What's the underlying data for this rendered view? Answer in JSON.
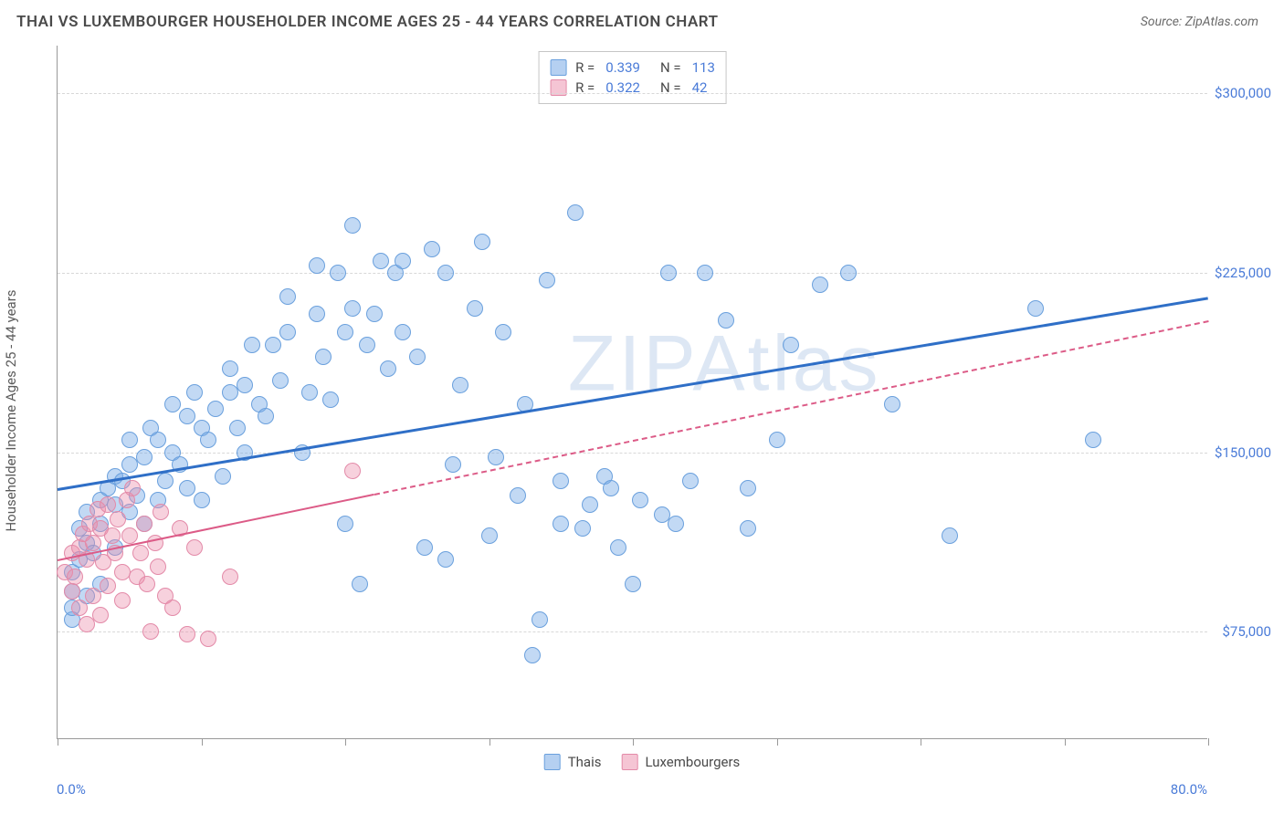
{
  "header": {
    "title": "THAI VS LUXEMBOURGER HOUSEHOLDER INCOME AGES 25 - 44 YEARS CORRELATION CHART",
    "source": "Source: ZipAtlas.com"
  },
  "watermark": "ZIPAtlas",
  "chart": {
    "type": "scatter",
    "ylabel": "Householder Income Ages 25 - 44 years",
    "xlim": [
      0,
      80
    ],
    "ylim": [
      30000,
      320000
    ],
    "xtick_positions": [
      0,
      10,
      20,
      30,
      40,
      50,
      60,
      70,
      80
    ],
    "xaxis_labels": {
      "left": "0.0%",
      "right": "80.0%"
    },
    "ytick_labels": [
      {
        "value": 75000,
        "label": "$75,000"
      },
      {
        "value": 150000,
        "label": "$150,000"
      },
      {
        "value": 225000,
        "label": "$225,000"
      },
      {
        "value": 300000,
        "label": "$300,000"
      }
    ],
    "background_color": "#ffffff",
    "grid_color": "#d8d8d8",
    "axis_color": "#999999",
    "point_radius": 9,
    "series": [
      {
        "name": "Thais",
        "fill": "rgba(120,170,230,0.45)",
        "stroke": "#6aa0dd",
        "trend_color": "#2f6fc7",
        "trend_width": 3,
        "trend": {
          "x1": 0,
          "y1": 135000,
          "x2": 80,
          "y2": 215000
        },
        "trend_dash_from_x": null,
        "R": "0.339",
        "N": "113",
        "points": [
          [
            1,
            80000
          ],
          [
            1,
            85000
          ],
          [
            1,
            92000
          ],
          [
            1,
            100000
          ],
          [
            1.5,
            105000
          ],
          [
            1.5,
            118000
          ],
          [
            2,
            90000
          ],
          [
            2,
            112000
          ],
          [
            2,
            125000
          ],
          [
            2.5,
            108000
          ],
          [
            3,
            95000
          ],
          [
            3,
            120000
          ],
          [
            3,
            130000
          ],
          [
            3.5,
            135000
          ],
          [
            4,
            110000
          ],
          [
            4,
            128000
          ],
          [
            4,
            140000
          ],
          [
            4.5,
            138000
          ],
          [
            5,
            125000
          ],
          [
            5,
            145000
          ],
          [
            5,
            155000
          ],
          [
            5.5,
            132000
          ],
          [
            6,
            120000
          ],
          [
            6,
            148000
          ],
          [
            6.5,
            160000
          ],
          [
            7,
            130000
          ],
          [
            7,
            155000
          ],
          [
            7.5,
            138000
          ],
          [
            8,
            150000
          ],
          [
            8,
            170000
          ],
          [
            8.5,
            145000
          ],
          [
            9,
            135000
          ],
          [
            9,
            165000
          ],
          [
            9.5,
            175000
          ],
          [
            10,
            130000
          ],
          [
            10,
            160000
          ],
          [
            10.5,
            155000
          ],
          [
            11,
            168000
          ],
          [
            11.5,
            140000
          ],
          [
            12,
            175000
          ],
          [
            12,
            185000
          ],
          [
            12.5,
            160000
          ],
          [
            13,
            150000
          ],
          [
            13,
            178000
          ],
          [
            13.5,
            195000
          ],
          [
            14,
            170000
          ],
          [
            14.5,
            165000
          ],
          [
            15,
            195000
          ],
          [
            15.5,
            180000
          ],
          [
            16,
            200000
          ],
          [
            16,
            215000
          ],
          [
            17,
            150000
          ],
          [
            17.5,
            175000
          ],
          [
            18,
            208000
          ],
          [
            18,
            228000
          ],
          [
            18.5,
            190000
          ],
          [
            19,
            172000
          ],
          [
            19.5,
            225000
          ],
          [
            20,
            120000
          ],
          [
            20,
            200000
          ],
          [
            20.5,
            210000
          ],
          [
            20.5,
            245000
          ],
          [
            21,
            95000
          ],
          [
            21.5,
            195000
          ],
          [
            22,
            208000
          ],
          [
            22.5,
            230000
          ],
          [
            23,
            185000
          ],
          [
            23.5,
            225000
          ],
          [
            24,
            230000
          ],
          [
            24,
            200000
          ],
          [
            25,
            190000
          ],
          [
            25.5,
            110000
          ],
          [
            26,
            235000
          ],
          [
            27,
            105000
          ],
          [
            27,
            225000
          ],
          [
            27.5,
            145000
          ],
          [
            28,
            178000
          ],
          [
            29,
            210000
          ],
          [
            29.5,
            238000
          ],
          [
            30,
            115000
          ],
          [
            30.5,
            148000
          ],
          [
            31,
            200000
          ],
          [
            32,
            132000
          ],
          [
            32.5,
            170000
          ],
          [
            33,
            65000
          ],
          [
            33.5,
            80000
          ],
          [
            34,
            222000
          ],
          [
            35,
            120000
          ],
          [
            35,
            138000
          ],
          [
            36,
            250000
          ],
          [
            36.5,
            118000
          ],
          [
            37,
            128000
          ],
          [
            38,
            140000
          ],
          [
            38.5,
            135000
          ],
          [
            39,
            110000
          ],
          [
            40,
            95000
          ],
          [
            40.5,
            130000
          ],
          [
            42,
            124000
          ],
          [
            42.5,
            225000
          ],
          [
            43,
            120000
          ],
          [
            44,
            138000
          ],
          [
            45,
            225000
          ],
          [
            46.5,
            205000
          ],
          [
            48,
            118000
          ],
          [
            48,
            135000
          ],
          [
            50,
            155000
          ],
          [
            51,
            195000
          ],
          [
            53,
            220000
          ],
          [
            55,
            225000
          ],
          [
            58,
            170000
          ],
          [
            62,
            115000
          ],
          [
            68,
            210000
          ],
          [
            72,
            155000
          ]
        ]
      },
      {
        "name": "Luxembourgers",
        "fill": "rgba(235,140,170,0.40)",
        "stroke": "#e38aa8",
        "trend_color": "#dc5b87",
        "trend_width": 2,
        "trend": {
          "x1": 0,
          "y1": 105000,
          "x2": 80,
          "y2": 205000
        },
        "trend_dash_from_x": 22,
        "R": "0.322",
        "N": "42",
        "points": [
          [
            0.5,
            100000
          ],
          [
            1,
            92000
          ],
          [
            1,
            108000
          ],
          [
            1.2,
            98000
          ],
          [
            1.5,
            85000
          ],
          [
            1.5,
            110000
          ],
          [
            1.8,
            116000
          ],
          [
            2,
            78000
          ],
          [
            2,
            105000
          ],
          [
            2.2,
            120000
          ],
          [
            2.5,
            90000
          ],
          [
            2.5,
            112000
          ],
          [
            2.8,
            126000
          ],
          [
            3,
            82000
          ],
          [
            3,
            118000
          ],
          [
            3.2,
            104000
          ],
          [
            3.5,
            128000
          ],
          [
            3.5,
            94000
          ],
          [
            3.8,
            115000
          ],
          [
            4,
            108000
          ],
          [
            4.2,
            122000
          ],
          [
            4.5,
            88000
          ],
          [
            4.5,
            100000
          ],
          [
            4.8,
            130000
          ],
          [
            5,
            115000
          ],
          [
            5.2,
            135000
          ],
          [
            5.5,
            98000
          ],
          [
            5.8,
            108000
          ],
          [
            6,
            120000
          ],
          [
            6.2,
            95000
          ],
          [
            6.5,
            75000
          ],
          [
            6.8,
            112000
          ],
          [
            7,
            102000
          ],
          [
            7.2,
            125000
          ],
          [
            7.5,
            90000
          ],
          [
            8,
            85000
          ],
          [
            8.5,
            118000
          ],
          [
            9,
            74000
          ],
          [
            9.5,
            110000
          ],
          [
            10.5,
            72000
          ],
          [
            12,
            98000
          ],
          [
            20.5,
            142000
          ]
        ]
      }
    ],
    "legend_top": [
      {
        "swatch_fill": "rgba(120,170,230,0.55)",
        "swatch_stroke": "#6aa0dd",
        "R": "0.339",
        "N": "113"
      },
      {
        "swatch_fill": "rgba(235,140,170,0.50)",
        "swatch_stroke": "#e38aa8",
        "R": "0.322",
        "N": "42"
      }
    ],
    "legend_bottom": [
      {
        "swatch_fill": "rgba(120,170,230,0.55)",
        "swatch_stroke": "#6aa0dd",
        "label": "Thais"
      },
      {
        "swatch_fill": "rgba(235,140,170,0.50)",
        "swatch_stroke": "#e38aa8",
        "label": "Luxembourgers"
      }
    ]
  }
}
